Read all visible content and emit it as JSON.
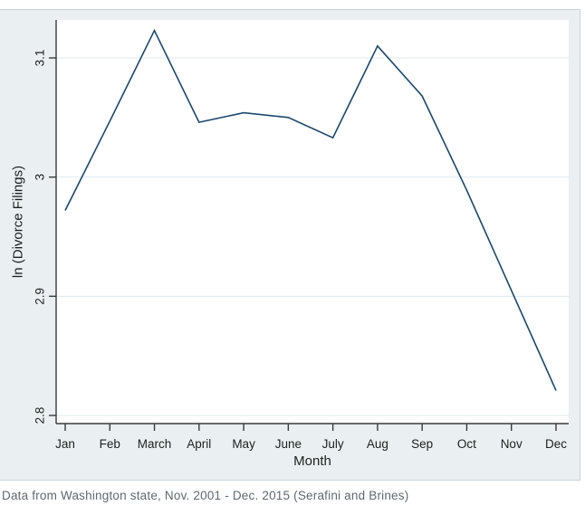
{
  "page": {
    "caption": "Data from Washington state, Nov. 2001 - Dec. 2015 (Serafini and Brines)"
  },
  "chart_data": {
    "type": "line",
    "title": "",
    "xlabel": "Month",
    "ylabel": "ln (Divorce Filings)",
    "categories": [
      "Jan",
      "Feb",
      "March",
      "April",
      "May",
      "June",
      "July",
      "Aug",
      "Sep",
      "Oct",
      "Nov",
      "Dec"
    ],
    "series": [
      {
        "name": "ln divorce filings",
        "values": [
          2.972,
          3.047,
          3.123,
          3.046,
          3.054,
          3.05,
          3.033,
          3.11,
          3.068,
          2.989,
          2.905,
          2.821
        ]
      }
    ],
    "yticks": [
      "2.8",
      "2.9",
      "3",
      "3.1"
    ],
    "ytick_values": [
      2.8,
      2.9,
      3.0,
      3.1
    ],
    "ylim": [
      2.793,
      3.132
    ],
    "grid": true,
    "legend_position": "none",
    "colors": {
      "line": "#1a476f",
      "plot_bg": "#ffffff",
      "panel_bg": "#eaf0f1",
      "grid": "#dfe9ed",
      "axis": "#3a3a3a",
      "tick_text": "#1f1f1f",
      "axis_title_text": "#1f1f1f",
      "caption_text": "#5d6a71",
      "panel_border": "#c9d4d8",
      "page_bg": "#ffffff"
    }
  }
}
